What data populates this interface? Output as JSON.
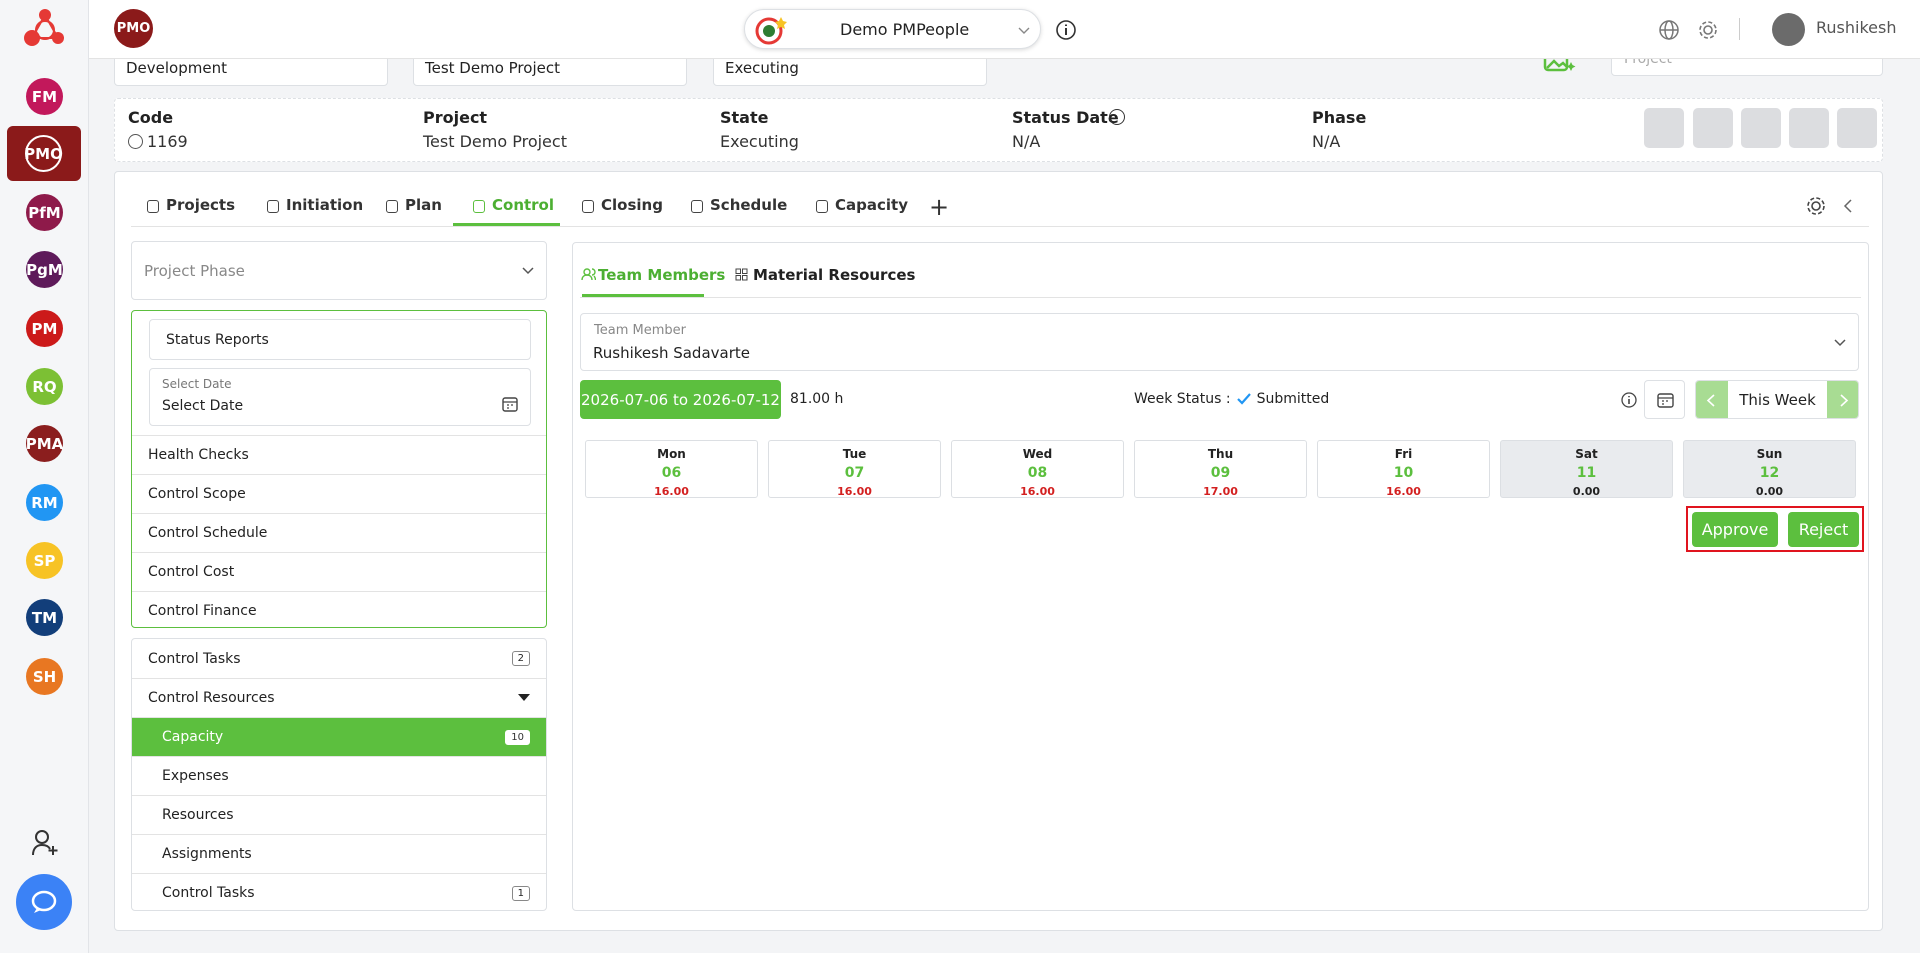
{
  "sidebar": {
    "apps": [
      "FM",
      "PMO",
      "PfM",
      "PgM",
      "PM",
      "RQ",
      "PMA",
      "RM",
      "SP",
      "TM",
      "SH"
    ]
  },
  "header": {
    "badge": "PMO",
    "workspace": "Demo PMPeople",
    "user": "Rushikesh"
  },
  "filters": {
    "values": [
      "Development",
      "Test Demo Project",
      "Executing"
    ],
    "search_placeholder": "Project"
  },
  "project_info": {
    "fields": [
      {
        "label": "Code",
        "value": "1169"
      },
      {
        "label": "Project",
        "value": "Test Demo Project"
      },
      {
        "label": "State",
        "value": "Executing"
      },
      {
        "label": "Status Date",
        "value": "N/A"
      },
      {
        "label": "Phase",
        "value": "N/A"
      }
    ]
  },
  "tabs": [
    "Projects",
    "Initiation",
    "Plan",
    "Control",
    "Closing",
    "Schedule",
    "Capacity"
  ],
  "left_menu": {
    "phase_placeholder": "Project Phase",
    "status_reports": "Status Reports",
    "date_label": "Select Date",
    "date_placeholder": "Select Date",
    "items": [
      "Health Checks",
      "Control Scope",
      "Control Schedule",
      "Control Cost",
      "Control Finance"
    ],
    "control_tasks": {
      "label": "Control Tasks",
      "count": "2"
    },
    "control_resources": "Control Resources",
    "sub_items": [
      {
        "label": "Capacity",
        "count": "10"
      },
      {
        "label": "Expenses"
      },
      {
        "label": "Resources"
      },
      {
        "label": "Assignments"
      },
      {
        "label": "Control Tasks",
        "count": "1"
      }
    ]
  },
  "timesheet": {
    "subtabs": [
      "Team Members",
      "Material Resources"
    ],
    "member_label": "Team Member",
    "member_value": "Rushikesh Sadavarte",
    "week_range": "2026-07-06 to 2026-07-12",
    "total": "81.00 h",
    "week_status_label": "Week Status :",
    "week_status": "Submitted",
    "this_week": "This Week",
    "days": [
      {
        "day": "Mon",
        "date": "06",
        "hours": "16.00"
      },
      {
        "day": "Tue",
        "date": "07",
        "hours": "16.00"
      },
      {
        "day": "Wed",
        "date": "08",
        "hours": "16.00"
      },
      {
        "day": "Thu",
        "date": "09",
        "hours": "17.00"
      },
      {
        "day": "Fri",
        "date": "10",
        "hours": "16.00"
      },
      {
        "day": "Sat",
        "date": "11",
        "hours": "0.00"
      },
      {
        "day": "Sun",
        "date": "12",
        "hours": "0.00"
      }
    ],
    "approve": "Approve",
    "reject": "Reject"
  }
}
